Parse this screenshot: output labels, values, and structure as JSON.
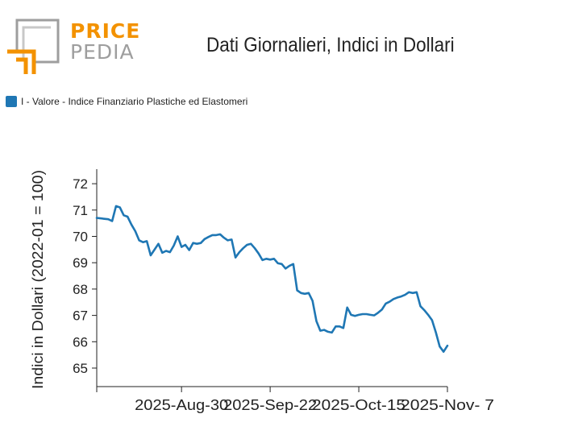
{
  "header": {
    "logo_top": "PRICE",
    "logo_bottom": "PEDIA",
    "title": "Dati Giornalieri, Indici in Dollari"
  },
  "legend": {
    "label": "I - Valore - Indice Finanziario Plastiche ed Elastomeri",
    "color": "#1f77b4"
  },
  "chart_data": {
    "type": "line",
    "title": "Dati Giornalieri, Indici in Dollari",
    "xlabel": "",
    "ylabel": "Indici in Dollari (2022-01 = 100)",
    "ylim": [
      64.3,
      72.6
    ],
    "yticks": [
      65,
      66,
      67,
      68,
      69,
      70,
      71,
      72
    ],
    "xtick_labels": [
      "2025-Aug-30",
      "2025-Sep-22",
      "2025-Oct-15",
      "2025-Nov- 7"
    ],
    "xtick_days": [
      22,
      45,
      68,
      91
    ],
    "xlim": [
      0,
      91
    ],
    "series": [
      {
        "name": "I - Valore - Indice Finanziario Plastiche ed Elastomeri",
        "color": "#1f77b4",
        "days": [
          0,
          3,
          4,
          5,
          6,
          7,
          8,
          9,
          10,
          11,
          12,
          13,
          14,
          15,
          16,
          17,
          18,
          19,
          20,
          21,
          22,
          23,
          24,
          25,
          26,
          27,
          28,
          29,
          30,
          31,
          32,
          33,
          34,
          35,
          36,
          37,
          38,
          39,
          40,
          41,
          42,
          43,
          44,
          45,
          46,
          47,
          48,
          49,
          50,
          51,
          52,
          53,
          54,
          55,
          56,
          57,
          58,
          59,
          60,
          61,
          62,
          63,
          64,
          65,
          66,
          67,
          68,
          69,
          70,
          71,
          72,
          73,
          74,
          75,
          76,
          77,
          78,
          79,
          80,
          81,
          82,
          83,
          84,
          85,
          86,
          87,
          88,
          89,
          90,
          91
        ],
        "values": [
          70.7,
          70.65,
          70.58,
          71.15,
          71.1,
          70.8,
          70.75,
          70.45,
          70.2,
          69.85,
          69.78,
          69.82,
          69.28,
          69.5,
          69.72,
          69.38,
          69.45,
          69.4,
          69.65,
          70.0,
          69.6,
          69.68,
          69.48,
          69.75,
          69.72,
          69.75,
          69.9,
          69.98,
          70.05,
          70.05,
          70.08,
          69.95,
          69.85,
          69.88,
          69.2,
          69.4,
          69.55,
          69.68,
          69.72,
          69.55,
          69.35,
          69.1,
          69.15,
          69.12,
          69.15,
          68.98,
          68.95,
          68.78,
          68.88,
          68.95,
          67.95,
          67.85,
          67.82,
          67.85,
          67.55,
          66.78,
          66.42,
          66.45,
          66.38,
          66.35,
          66.58,
          66.58,
          66.52,
          67.3,
          67.02,
          66.98,
          67.02,
          67.05,
          67.05,
          67.02,
          67.0,
          67.1,
          67.22,
          67.45,
          67.52,
          67.62,
          67.68,
          67.72,
          67.78,
          67.88,
          67.85,
          67.88,
          67.35,
          67.2,
          67.02,
          66.82,
          66.35,
          65.82,
          65.62,
          65.85
        ]
      }
    ]
  }
}
